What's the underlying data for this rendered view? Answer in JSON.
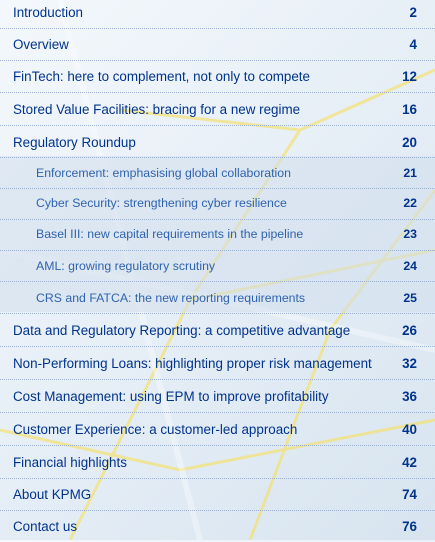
{
  "toc": {
    "entries": [
      {
        "title": "Introduction",
        "page": "2",
        "level": 1
      },
      {
        "title": "Overview",
        "page": "4",
        "level": 1
      },
      {
        "title": "FinTech: here to complement, not only to compete",
        "page": "12",
        "level": 1
      },
      {
        "title": "Stored Value Facilities: bracing for a new regime",
        "page": "16",
        "level": 1
      },
      {
        "title": "Regulatory Roundup",
        "page": "20",
        "level": 1
      },
      {
        "title": "Enforcement: emphasising global collaboration",
        "page": "21",
        "level": 2
      },
      {
        "title": "Cyber Security: strengthening cyber resilience",
        "page": "22",
        "level": 2
      },
      {
        "title": "Basel III: new capital requirements in the pipeline",
        "page": "23",
        "level": 2
      },
      {
        "title": "AML: growing regulatory scrutiny",
        "page": "24",
        "level": 2
      },
      {
        "title": "CRS and FATCA: the new reporting requirements",
        "page": "25",
        "level": 2
      },
      {
        "title": "Data and Regulatory Reporting: a competitive advantage",
        "page": "26",
        "level": 1
      },
      {
        "title": "Non-Performing Loans: highlighting proper risk management",
        "page": "32",
        "level": 1
      },
      {
        "title": "Cost Management: using EPM to improve profitability",
        "page": "36",
        "level": 1
      },
      {
        "title": "Customer Experience: a customer-led approach",
        "page": "40",
        "level": 1
      },
      {
        "title": "Financial highlights",
        "page": "42",
        "level": 1
      },
      {
        "title": "About KPMG",
        "page": "74",
        "level": 1
      },
      {
        "title": "Contact us",
        "page": "76",
        "level": 1
      }
    ]
  },
  "colors": {
    "main_text": "#00338d",
    "sub_text": "#2f63ae",
    "background_line": "#f3e27a"
  }
}
